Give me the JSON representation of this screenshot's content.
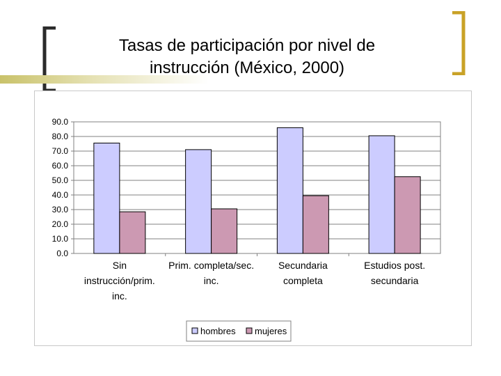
{
  "slide": {
    "title_line1": "Tasas de participación por nivel de",
    "title_line2": "instrucción (México, 2000)",
    "colors": {
      "bracket_left": "#2b2b2b",
      "bracket_right": "#c9a227",
      "accent_line": "#d8d28a"
    }
  },
  "chart_data": {
    "type": "bar",
    "title": "",
    "xlabel": "",
    "ylabel": "",
    "categories": [
      [
        "Sin",
        "instrucción/prim.",
        "inc."
      ],
      [
        "Prim. completa/sec.",
        "inc."
      ],
      [
        "Secundaria",
        "completa"
      ],
      [
        "Estudios post.",
        "secundaria"
      ]
    ],
    "series": [
      {
        "name": "hombres",
        "values": [
          75.5,
          71.0,
          86.0,
          80.5
        ],
        "color": "#ccccff"
      },
      {
        "name": "mujeres",
        "values": [
          28.5,
          30.5,
          39.5,
          52.5
        ],
        "color": "#cc99b2"
      }
    ],
    "ylim": [
      0,
      90
    ],
    "yticks": [
      "0.0",
      "10.0",
      "20.0",
      "30.0",
      "40.0",
      "50.0",
      "60.0",
      "70.0",
      "80.0",
      "90.0"
    ],
    "grid": true,
    "legend": "bottom"
  }
}
